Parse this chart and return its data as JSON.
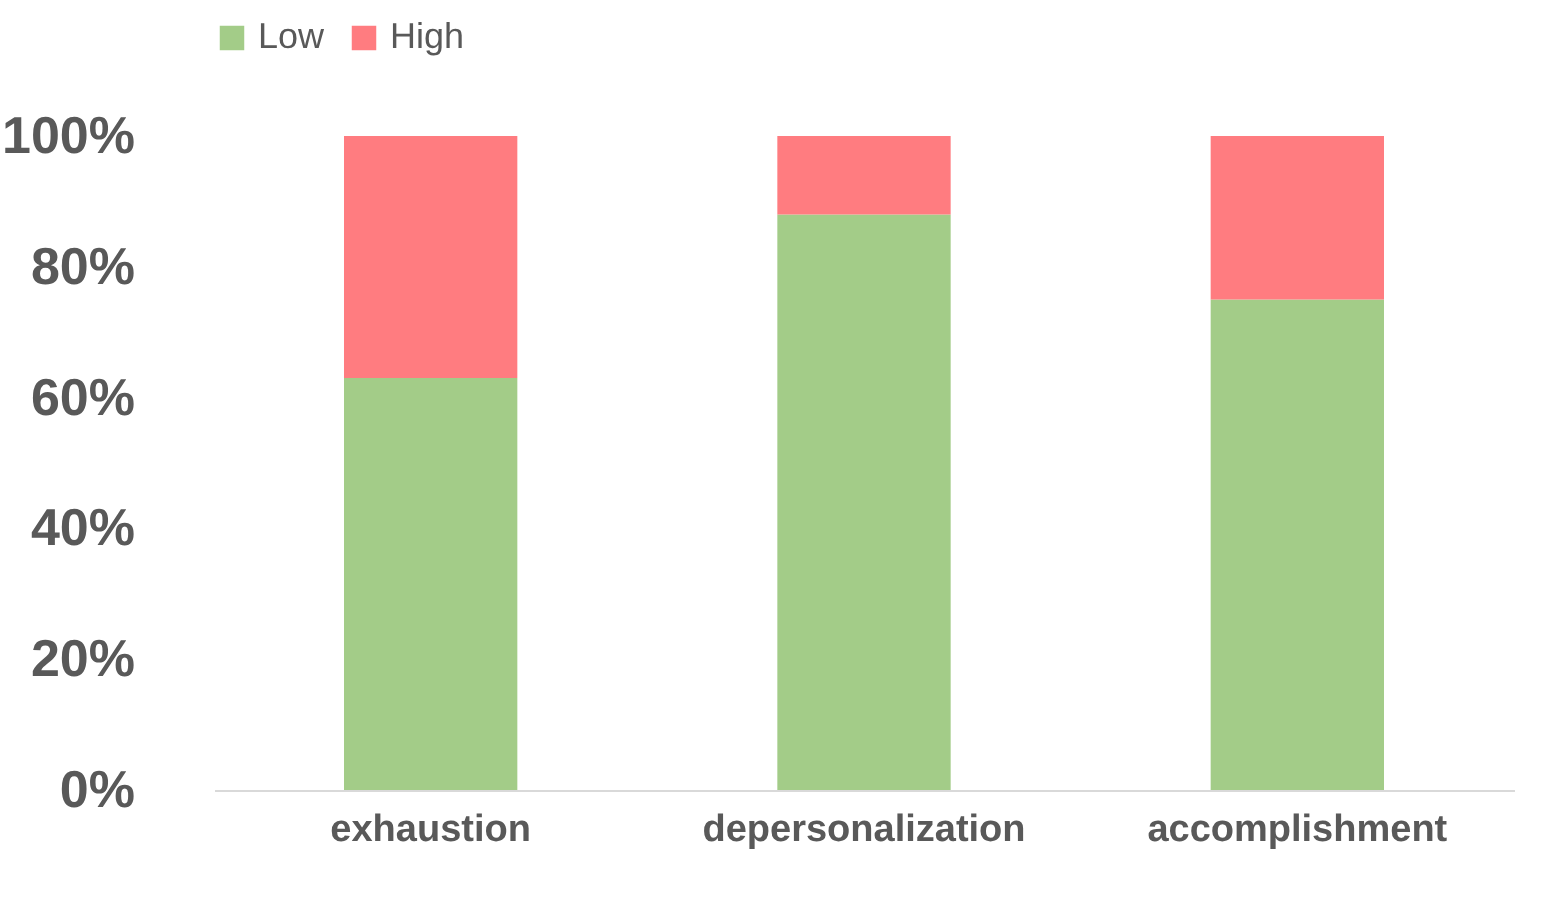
{
  "chart_data": {
    "type": "bar",
    "stacked": true,
    "categories": [
      "exhaustion",
      "depersonalization",
      "accomplishment"
    ],
    "series": [
      {
        "name": "Low",
        "color": "#a3cc88",
        "values": [
          63,
          88,
          75
        ]
      },
      {
        "name": "High",
        "color": "#ff7c80",
        "values": [
          37,
          12,
          25
        ]
      }
    ],
    "ylim": [
      0,
      100
    ],
    "yticks": [
      {
        "value": 0,
        "label": "0%"
      },
      {
        "value": 20,
        "label": "20%"
      },
      {
        "value": 40,
        "label": "40%"
      },
      {
        "value": 60,
        "label": "60%"
      },
      {
        "value": 80,
        "label": "80%"
      },
      {
        "value": 100,
        "label": "100%"
      }
    ],
    "legend": "top",
    "grid": false
  }
}
